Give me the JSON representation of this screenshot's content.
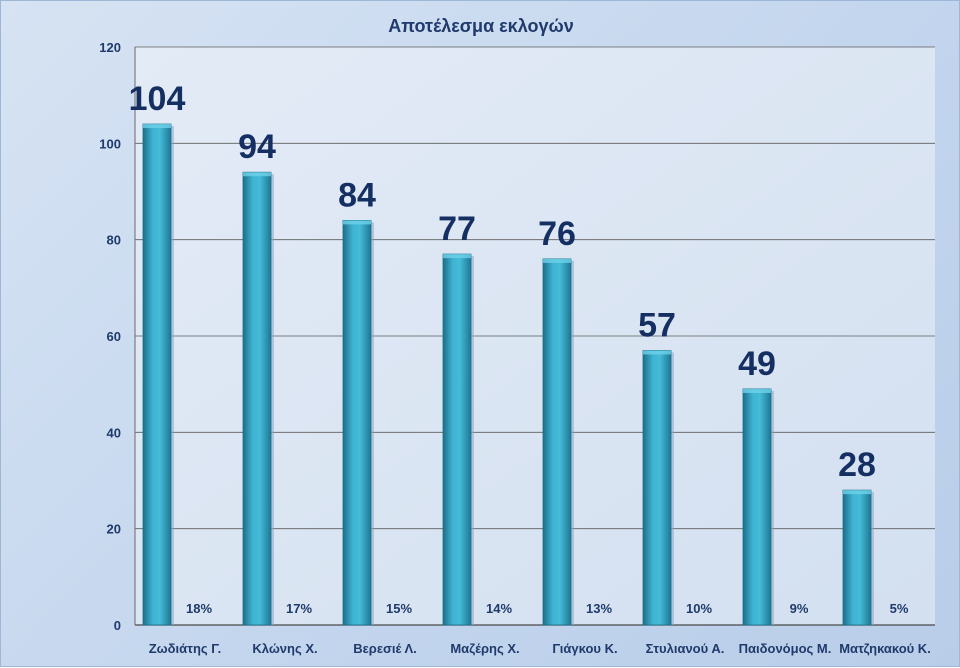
{
  "chart_data": {
    "type": "bar",
    "title": "Αποτέλεσμα εκλογών",
    "xlabel": "",
    "ylabel": "",
    "ylim": [
      0,
      120
    ],
    "yticks": [
      0,
      20,
      40,
      60,
      80,
      100,
      120
    ],
    "grid": true,
    "categories": [
      "Ζωδιάτης Γ.",
      "Κλώνης Χ.",
      "Βερεσιέ Λ.",
      "Μαζέρης Χ.",
      "Γιάγκου Κ.",
      "Στυλιανού Α.",
      "Παιδονόμος Μ.",
      "Ματζηκακού Κ."
    ],
    "values": [
      104,
      94,
      84,
      77,
      76,
      57,
      49,
      28
    ],
    "percent_labels": [
      "18%",
      "17%",
      "15%",
      "14%",
      "13%",
      "10%",
      "9%",
      "5%"
    ],
    "colors": {
      "bar": "#2e9bbb",
      "bar_light": "#4cc2de",
      "bar_dark": "#1a6f8a",
      "plot_area": "#dde7f3",
      "label": "#152f63"
    }
  }
}
